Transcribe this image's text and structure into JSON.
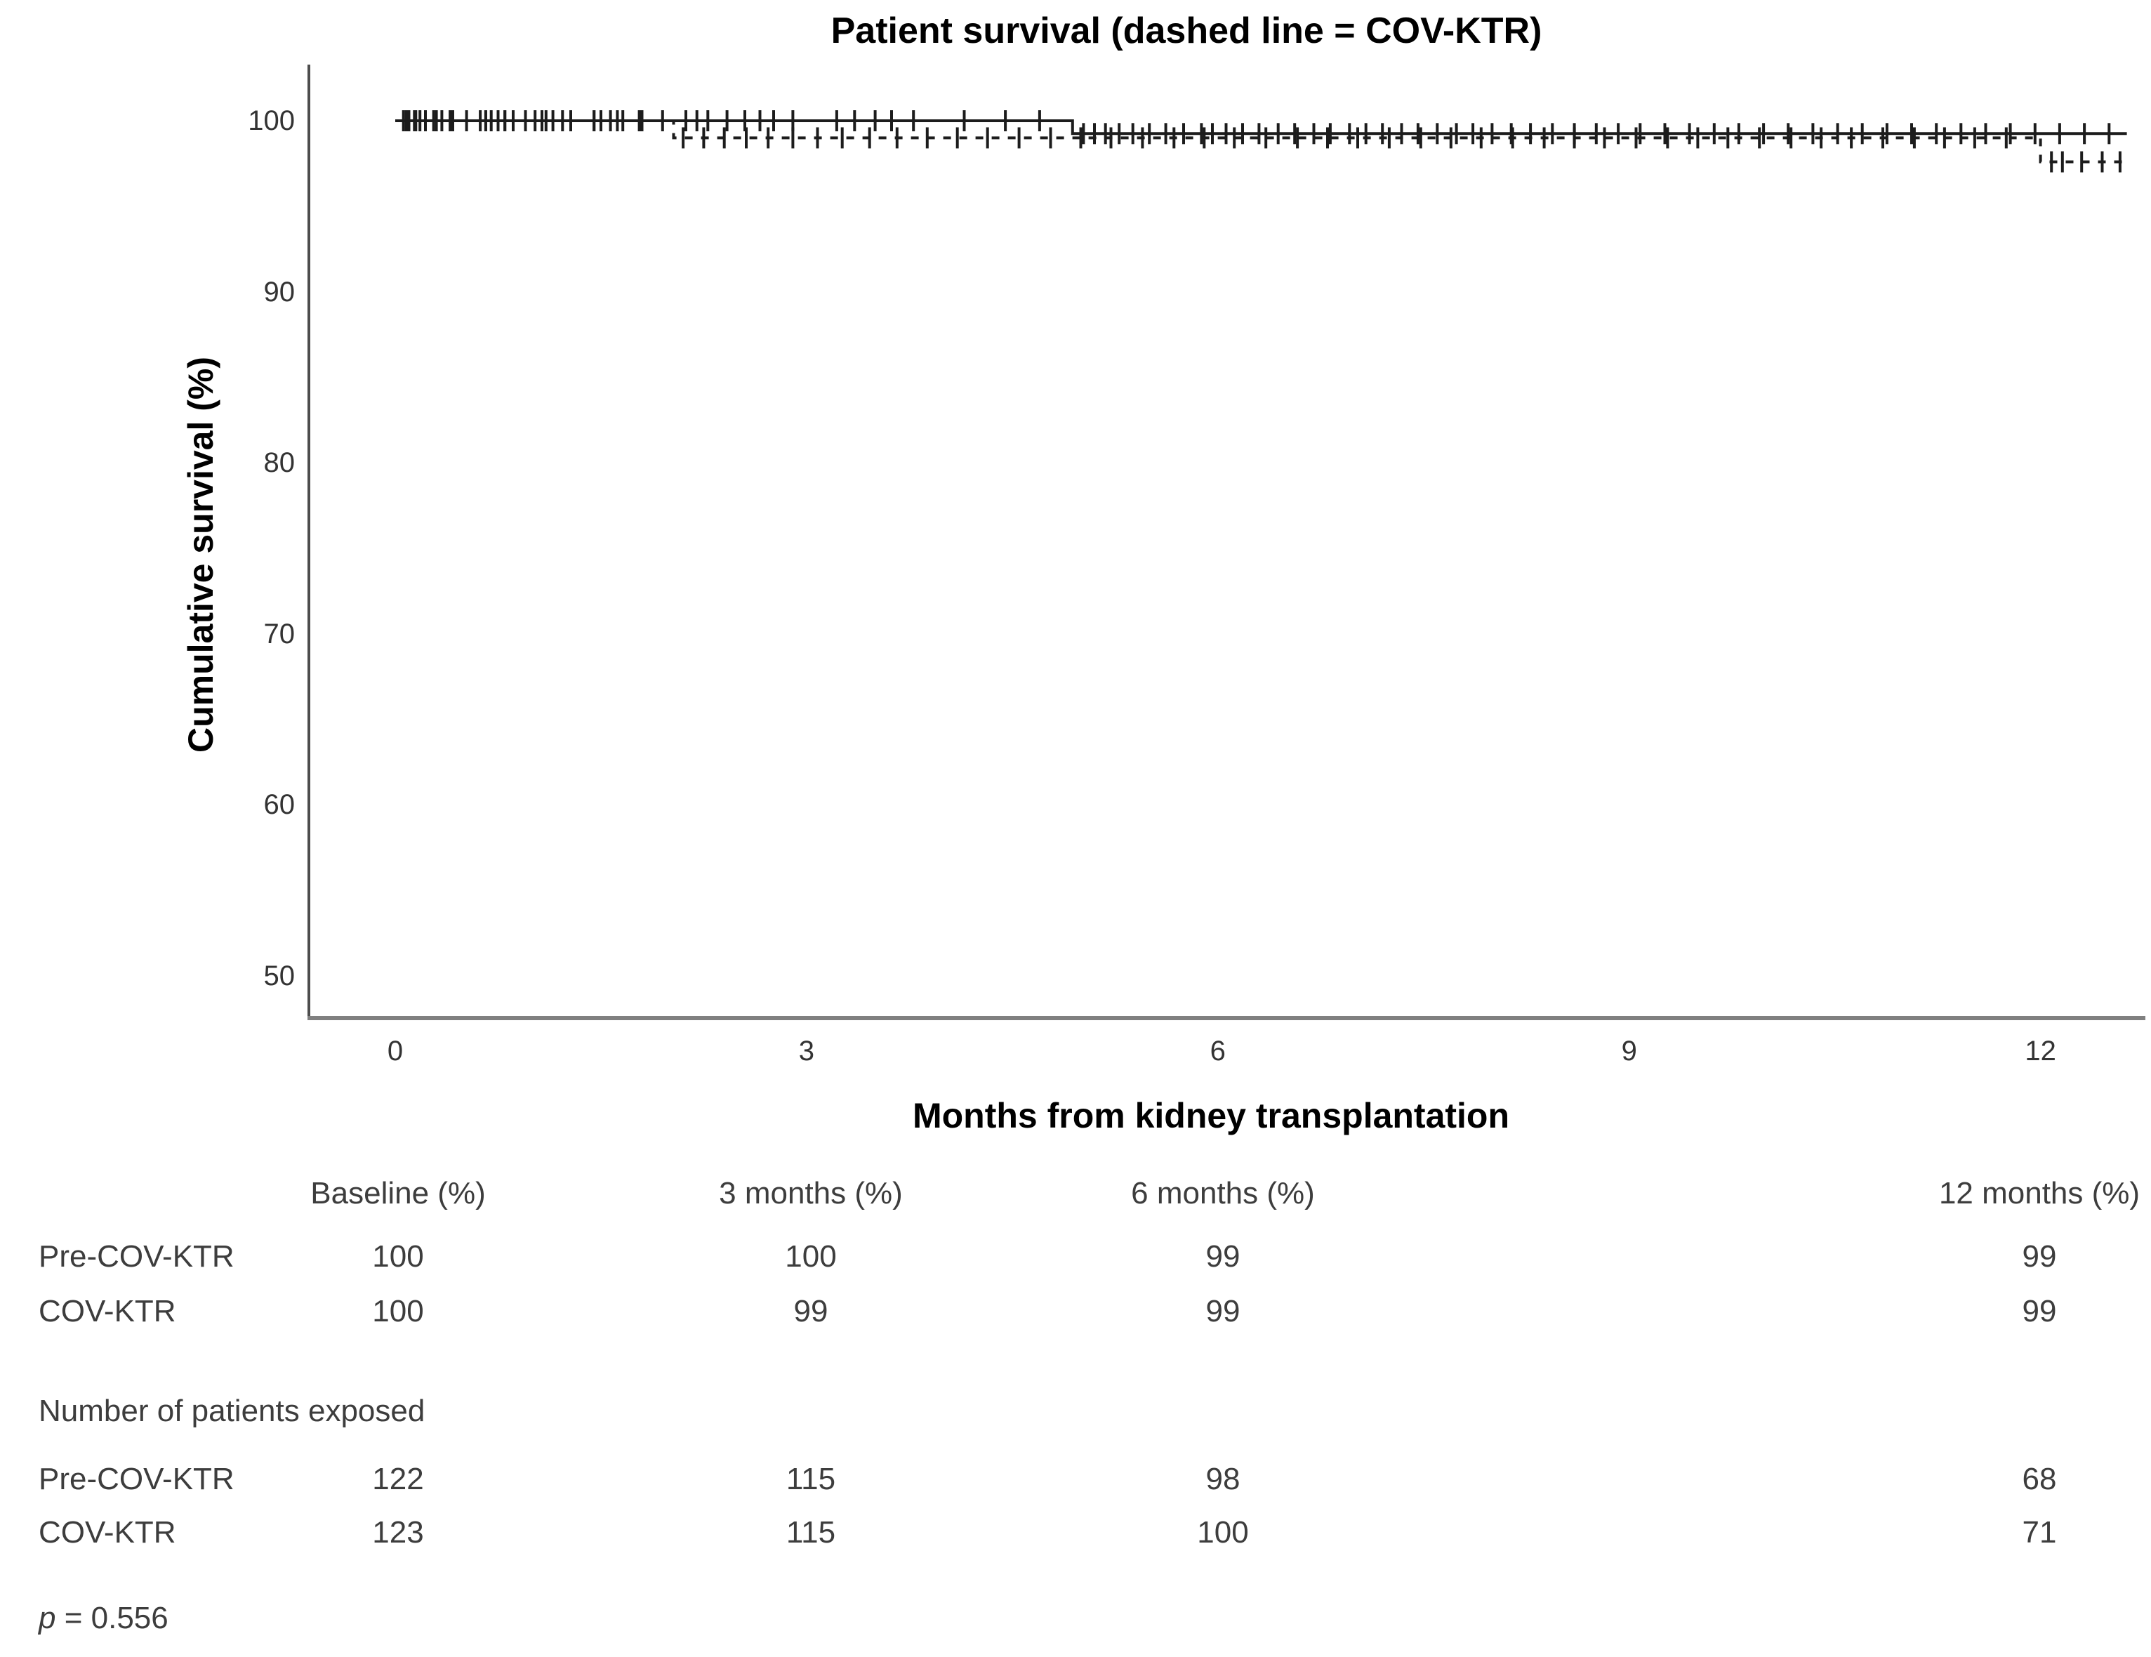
{
  "chart_data": {
    "type": "line",
    "subtype": "kaplan-meier-step",
    "title": "Patient survival (dashed line = COV-KTR)",
    "xlabel": "Months from kidney transplantation",
    "ylabel": "Cumulative survival (%)",
    "x_ticks": [
      0,
      3,
      6,
      9,
      12
    ],
    "y_ticks": [
      100,
      90,
      80,
      70,
      60,
      50
    ],
    "xlim": [
      -0.63,
      12.8
    ],
    "ylim": [
      47.5,
      103.3
    ],
    "grid": false,
    "legend": "none (dashed line identified in title)",
    "series": [
      {
        "name": "Pre-COV-KTR",
        "line": "solid",
        "color": "#1c1c1c",
        "steps": [
          [
            0,
            100
          ],
          [
            4.94,
            100
          ],
          [
            4.94,
            99.25
          ],
          [
            12.63,
            99.25
          ]
        ],
        "censors": [
          0.06,
          0.1,
          0.14,
          0.18,
          0.22,
          0.28,
          0.34,
          0.42,
          0.62,
          0.66,
          0.7,
          0.75,
          0.8,
          0.86,
          1.02,
          1.07,
          1.15,
          1.22,
          1.45,
          1.5,
          1.57,
          1.66,
          1.78,
          2.12,
          2.2,
          2.28,
          2.42,
          2.55,
          2.66,
          2.76,
          2.9,
          3.22,
          3.35,
          3.5,
          3.62,
          3.78,
          4.15,
          4.45,
          4.7,
          5.02,
          5.1,
          5.18,
          5.28,
          5.38,
          5.5,
          5.62,
          5.75,
          5.88,
          5.96,
          6.06,
          6.18,
          6.3,
          6.44,
          6.56,
          6.7,
          6.82,
          6.96,
          7.08,
          7.2,
          7.34,
          7.46,
          7.6,
          7.74,
          7.86,
          8.0,
          8.14,
          8.28,
          8.44,
          8.6,
          8.76,
          8.92,
          9.08,
          9.26,
          9.44,
          9.62,
          9.8,
          9.98,
          10.16,
          10.34,
          10.52,
          10.7,
          10.88,
          11.06,
          11.24,
          11.42,
          11.6,
          11.78,
          11.96,
          12.14,
          12.32,
          12.5
        ]
      },
      {
        "name": "COV-KTR",
        "line": "dashed",
        "color": "#1c1c1c",
        "steps": [
          [
            0,
            100
          ],
          [
            2.03,
            100
          ],
          [
            2.03,
            99.0
          ],
          [
            12.0,
            99.0
          ],
          [
            12.0,
            97.6
          ],
          [
            12.63,
            97.6
          ]
        ],
        "censors": [
          0.08,
          0.15,
          0.22,
          0.3,
          0.4,
          0.52,
          0.66,
          0.8,
          0.95,
          1.1,
          1.28,
          1.45,
          1.62,
          1.8,
          1.95,
          2.1,
          2.25,
          2.4,
          2.56,
          2.72,
          2.9,
          3.08,
          3.26,
          3.46,
          3.66,
          3.88,
          4.1,
          4.32,
          4.55,
          4.78,
          5.0,
          5.22,
          5.45,
          5.68,
          5.9,
          6.12,
          6.35,
          6.58,
          6.8,
          7.02,
          7.25,
          7.48,
          7.7,
          7.92,
          8.15,
          8.38,
          8.6,
          8.82,
          9.05,
          9.28,
          9.5,
          9.72,
          9.95,
          10.18,
          10.4,
          10.62,
          10.85,
          11.08,
          11.3,
          11.52,
          11.75,
          12.08,
          12.16,
          12.3,
          12.45,
          12.58
        ]
      }
    ]
  },
  "tables": {
    "columns": [
      "Baseline (%)",
      "3 months (%)",
      "6 months (%)",
      "12 months (%)"
    ],
    "survival_rows": [
      {
        "label": "Pre-COV-KTR",
        "values": [
          "100",
          "100",
          "99",
          "99"
        ]
      },
      {
        "label": "COV-KTR",
        "values": [
          "100",
          "99",
          "99",
          "99"
        ]
      }
    ],
    "exposed_heading": "Number of patients exposed",
    "exposed_rows": [
      {
        "label": "Pre-COV-KTR",
        "values": [
          "122",
          "115",
          "98",
          "68"
        ]
      },
      {
        "label": "COV-KTR",
        "values": [
          "123",
          "115",
          "100",
          "71"
        ]
      }
    ]
  },
  "p_value": {
    "symbol": "p",
    "rest": " = 0.556"
  },
  "colors": {
    "axis": "#4d4d4d",
    "baseline_axis": "#808080",
    "tick_text": "#333333",
    "table_text": "#3d3d3d",
    "line": "#1c1c1c"
  }
}
